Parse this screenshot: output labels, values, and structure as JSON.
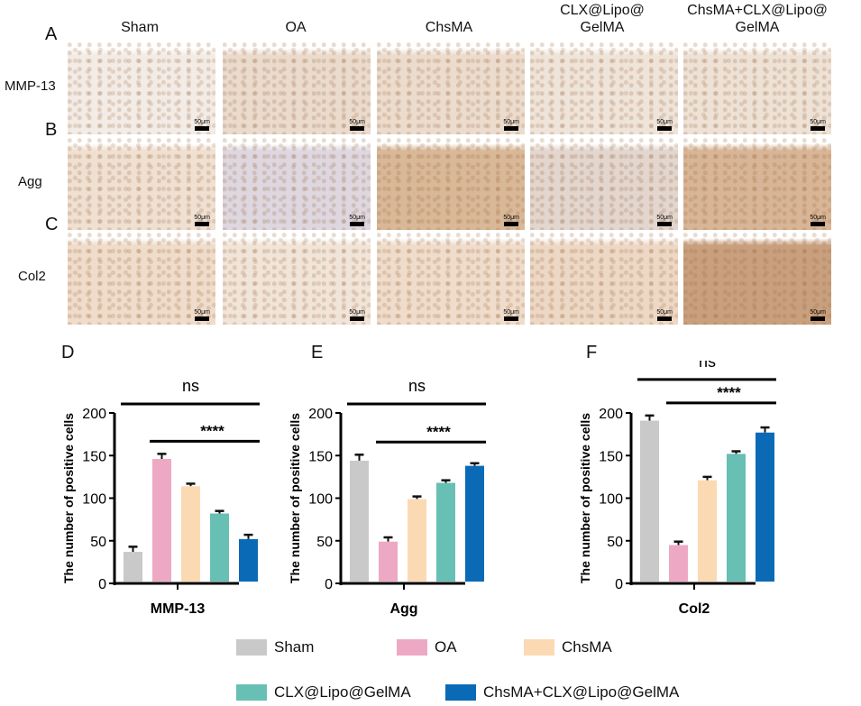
{
  "columns": [
    "Sham",
    "OA",
    "ChsMA",
    "CLX@Lipo@\nGelMA",
    "ChsMA+CLX@Lipo@\nGelMA"
  ],
  "rows": [
    {
      "panel": "A",
      "label": "MMP-13",
      "tones": [
        "#f3ece6",
        "#eadbcd",
        "#ecdccd",
        "#efe4d9",
        "#eee2d6"
      ]
    },
    {
      "panel": "B",
      "label": "Agg",
      "tones": [
        "#efe0d2",
        "#ded7e0",
        "#d9b898",
        "#e2d6cf",
        "#d8b596"
      ]
    },
    {
      "panel": "C",
      "label": "Col2",
      "tones": [
        "#efdcca",
        "#f1e4d8",
        "#efdccb",
        "#edd8c5",
        "#c9a07e"
      ]
    }
  ],
  "scale_bar": "50μm",
  "chart_data": [
    {
      "type": "bar",
      "panel": "D",
      "xlabel": "MMP-13",
      "ylabel": "The number of positive cells",
      "ylim": [
        0,
        200
      ],
      "yticks": [
        0,
        50,
        100,
        150,
        200
      ],
      "categories": [
        "Sham",
        "OA",
        "ChsMA",
        "CLX@Lipo@GelMA",
        "ChsMA+CLX@Lipo@GelMA"
      ],
      "values": [
        37,
        146,
        114,
        82,
        52
      ],
      "errors": [
        6,
        6,
        3,
        3,
        5
      ],
      "annotations": [
        {
          "text": "ns",
          "from": 0,
          "to": 4
        },
        {
          "text": "****",
          "from": 1,
          "to": 4
        }
      ]
    },
    {
      "type": "bar",
      "panel": "E",
      "xlabel": "Agg",
      "ylabel": "The number of positive cells",
      "ylim": [
        0,
        200
      ],
      "yticks": [
        0,
        50,
        100,
        150,
        200
      ],
      "categories": [
        "Sham",
        "OA",
        "ChsMA",
        "CLX@Lipo@GelMA",
        "ChsMA+CLX@Lipo@GelMA"
      ],
      "values": [
        144,
        49,
        99,
        118,
        138
      ],
      "errors": [
        7,
        5,
        3,
        3,
        3
      ],
      "annotations": [
        {
          "text": "ns",
          "from": 0,
          "to": 4
        },
        {
          "text": "****",
          "from": 1,
          "to": 4
        }
      ]
    },
    {
      "type": "bar",
      "panel": "F",
      "xlabel": "Col2",
      "ylabel": "The number of positive cells",
      "ylim": [
        0,
        200
      ],
      "yticks": [
        0,
        50,
        100,
        150,
        200
      ],
      "categories": [
        "Sham",
        "OA",
        "ChsMA",
        "CLX@Lipo@GelMA",
        "ChsMA+CLX@Lipo@GelMA"
      ],
      "values": [
        191,
        45,
        121,
        152,
        177
      ],
      "errors": [
        6,
        4,
        4,
        3,
        6
      ],
      "annotations": [
        {
          "text": "ns",
          "from": 0,
          "to": 4
        },
        {
          "text": "****",
          "from": 1,
          "to": 4
        }
      ]
    }
  ],
  "legend": [
    {
      "label": "Sham",
      "color": "#c9c9c9"
    },
    {
      "label": "OA",
      "color": "#eda9c3"
    },
    {
      "label": "ChsMA",
      "color": "#fbdab3"
    },
    {
      "label": "CLX@Lipo@GelMA",
      "color": "#68bfb3"
    },
    {
      "label": "ChsMA+CLX@Lipo@GelMA",
      "color": "#0a6ab6"
    }
  ]
}
